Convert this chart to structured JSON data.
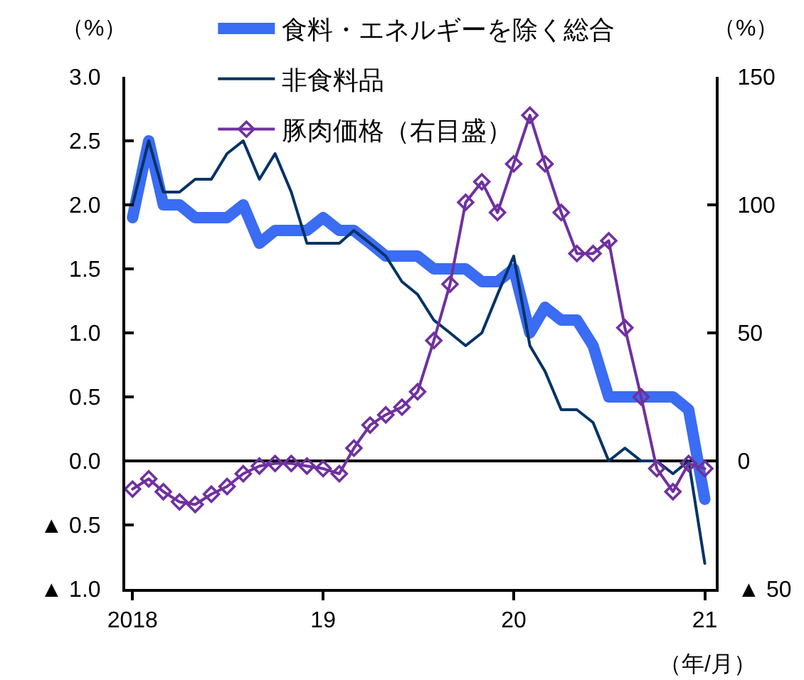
{
  "chart_data": {
    "type": "line",
    "ylabel": "（%）",
    "y2label": "（%）",
    "xlabel": "（年/月）",
    "x": [
      "2018-01",
      "2018-02",
      "2018-03",
      "2018-04",
      "2018-05",
      "2018-06",
      "2018-07",
      "2018-08",
      "2018-09",
      "2018-10",
      "2018-11",
      "2018-12",
      "2019-01",
      "2019-02",
      "2019-03",
      "2019-04",
      "2019-05",
      "2019-06",
      "2019-07",
      "2019-08",
      "2019-09",
      "2019-10",
      "2019-11",
      "2019-12",
      "2020-01",
      "2020-02",
      "2020-03",
      "2020-04",
      "2020-05",
      "2020-06",
      "2020-07",
      "2020-08",
      "2020-09",
      "2020-10",
      "2020-11",
      "2020-12",
      "2021-01"
    ],
    "series": [
      {
        "name": "食料・エネルギーを除く総合",
        "color": "#3a6cf4",
        "values": [
          1.9,
          2.5,
          2.0,
          2.0,
          1.9,
          1.9,
          1.9,
          2.0,
          1.7,
          1.8,
          1.8,
          1.8,
          1.9,
          1.8,
          1.8,
          1.7,
          1.6,
          1.6,
          1.6,
          1.5,
          1.5,
          1.5,
          1.4,
          1.4,
          1.5,
          1.0,
          1.2,
          1.1,
          1.1,
          0.9,
          0.5,
          0.5,
          0.5,
          0.5,
          0.5,
          0.4,
          -0.3
        ]
      },
      {
        "name": "非食料品",
        "color": "#003366",
        "values": [
          2.0,
          2.5,
          2.1,
          2.1,
          2.2,
          2.2,
          2.4,
          2.5,
          2.2,
          2.4,
          2.1,
          1.7,
          1.7,
          1.7,
          1.8,
          1.7,
          1.6,
          1.4,
          1.3,
          1.1,
          1.0,
          0.9,
          1.0,
          1.3,
          1.6,
          0.9,
          0.7,
          0.4,
          0.4,
          0.3,
          0.0,
          0.1,
          0.0,
          0.0,
          -0.1,
          0.0,
          -0.8
        ]
      },
      {
        "name": "豚肉価格（右目盛）",
        "color": "#7030a0",
        "axis": "y2",
        "marker": "diamond",
        "values": [
          -11,
          -7,
          -12,
          -16,
          -17,
          -13,
          -10,
          -5,
          -2,
          -1,
          -1,
          -2,
          -3,
          -5,
          5,
          14,
          18,
          21,
          27,
          47,
          69,
          101,
          109,
          97,
          116,
          135,
          116,
          97,
          81,
          81,
          86,
          52,
          25,
          -3,
          -12,
          -1,
          -3
        ]
      }
    ],
    "xlim": [
      "2017-12-18",
      "2021-01-22"
    ],
    "xticks": [
      {
        "value": "2018-01",
        "label": "2018"
      },
      {
        "value": "2019-01",
        "label": "19"
      },
      {
        "value": "2020-01",
        "label": "20"
      },
      {
        "value": "2021-01",
        "label": "21"
      }
    ],
    "ylim": [
      -1.0,
      3.0
    ],
    "yticks": [
      {
        "value": 3,
        "label": "3.0"
      },
      {
        "value": 2.5,
        "label": "2.5"
      },
      {
        "value": 2,
        "label": "2.0"
      },
      {
        "value": 1.5,
        "label": "1.5"
      },
      {
        "value": 1,
        "label": "1.0"
      },
      {
        "value": 0.5,
        "label": "0.5"
      },
      {
        "value": 0,
        "label": "0.0"
      },
      {
        "value": -0.5,
        "label": "▲ 0.5"
      },
      {
        "value": -1,
        "label": "▲ 1.0"
      }
    ],
    "y2lim": [
      -50,
      150
    ],
    "y2ticks": [
      150,
      100,
      50,
      0,
      {
        "value": -50,
        "label": "▲ 50"
      }
    ],
    "ref_lines": [
      {
        "axis": "y",
        "value": 0,
        "color": "#000000"
      }
    ],
    "legend": "top",
    "grid": false
  }
}
